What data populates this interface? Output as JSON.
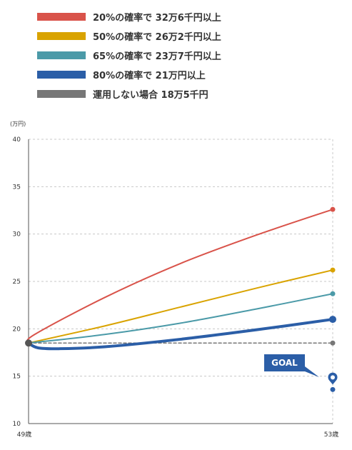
{
  "legend": {
    "items": [
      {
        "label": "20%の確率で  32万6千円以上",
        "color": "#d9534a"
      },
      {
        "label": "50%の確率で  26万2千円以上",
        "color": "#d9a300"
      },
      {
        "label": "65%の確率で  23万7千円以上",
        "color": "#4b9aa8"
      },
      {
        "label": "80%の確率で  21万円以上",
        "color": "#2b5ea7"
      },
      {
        "label": "運用しない場合 18万5千円",
        "color": "#777777"
      }
    ]
  },
  "chart_data": {
    "type": "line",
    "ylabel": "(万円)",
    "ylim": [
      10,
      40
    ],
    "yticks": [
      10,
      15,
      20,
      25,
      30,
      35,
      40
    ],
    "x_labels": [
      "49歳",
      "53歳"
    ],
    "grid": true,
    "series": [
      {
        "name": "20%の確率で  32万6千円以上",
        "color": "#d9534a",
        "width": 2,
        "points": [
          [
            0,
            18.5
          ],
          [
            0.02,
            19.4
          ],
          [
            0.25,
            23.3
          ],
          [
            0.5,
            26.9
          ],
          [
            0.75,
            29.9
          ],
          [
            1,
            32.6
          ]
        ]
      },
      {
        "name": "50%の確率で  26万2千円以上",
        "color": "#d9a300",
        "width": 2,
        "points": [
          [
            0,
            18.5
          ],
          [
            0.25,
            20.3
          ],
          [
            0.5,
            22.3
          ],
          [
            0.75,
            24.3
          ],
          [
            1,
            26.2
          ]
        ]
      },
      {
        "name": "65%の確率で  23万7千円以上",
        "color": "#4b9aa8",
        "width": 2,
        "points": [
          [
            0,
            18.5
          ],
          [
            0.25,
            19.4
          ],
          [
            0.5,
            20.6
          ],
          [
            0.75,
            22.1
          ],
          [
            1,
            23.7
          ]
        ]
      },
      {
        "name": "80%の確率で  21万円以上",
        "color": "#2b5ea7",
        "width": 4,
        "points": [
          [
            0,
            18.5
          ],
          [
            0.03,
            18.0
          ],
          [
            0.1,
            17.9
          ],
          [
            0.25,
            18.1
          ],
          [
            0.5,
            18.9
          ],
          [
            0.75,
            19.9
          ],
          [
            1,
            21.0
          ]
        ]
      },
      {
        "name": "運用しない場合 18万5千円",
        "color": "#777777",
        "width": 1.5,
        "dashed": true,
        "points": [
          [
            0,
            18.5
          ],
          [
            1,
            18.5
          ]
        ]
      }
    ],
    "goal": {
      "label": "GOAL",
      "value": 14.8,
      "color": "#2b5ea7"
    }
  }
}
